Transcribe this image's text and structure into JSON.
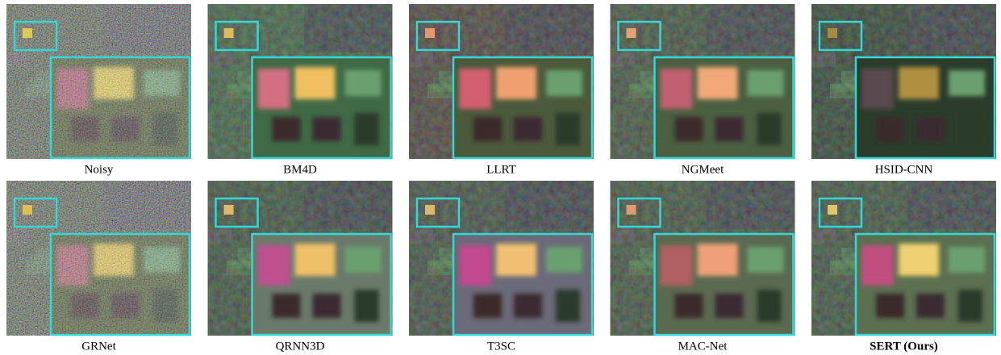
{
  "figure": {
    "panels": [
      {
        "caption": "Noisy"
      },
      {
        "caption": "BM4D"
      },
      {
        "caption": "LLRT"
      },
      {
        "caption": "NGMeet"
      },
      {
        "caption": "HSID-CNN"
      },
      {
        "caption": "GRNet"
      },
      {
        "caption": "QRNN3D"
      },
      {
        "caption": "T3SC"
      },
      {
        "caption": "MAC-Net"
      },
      {
        "caption": "SERT (Ours)"
      }
    ]
  }
}
